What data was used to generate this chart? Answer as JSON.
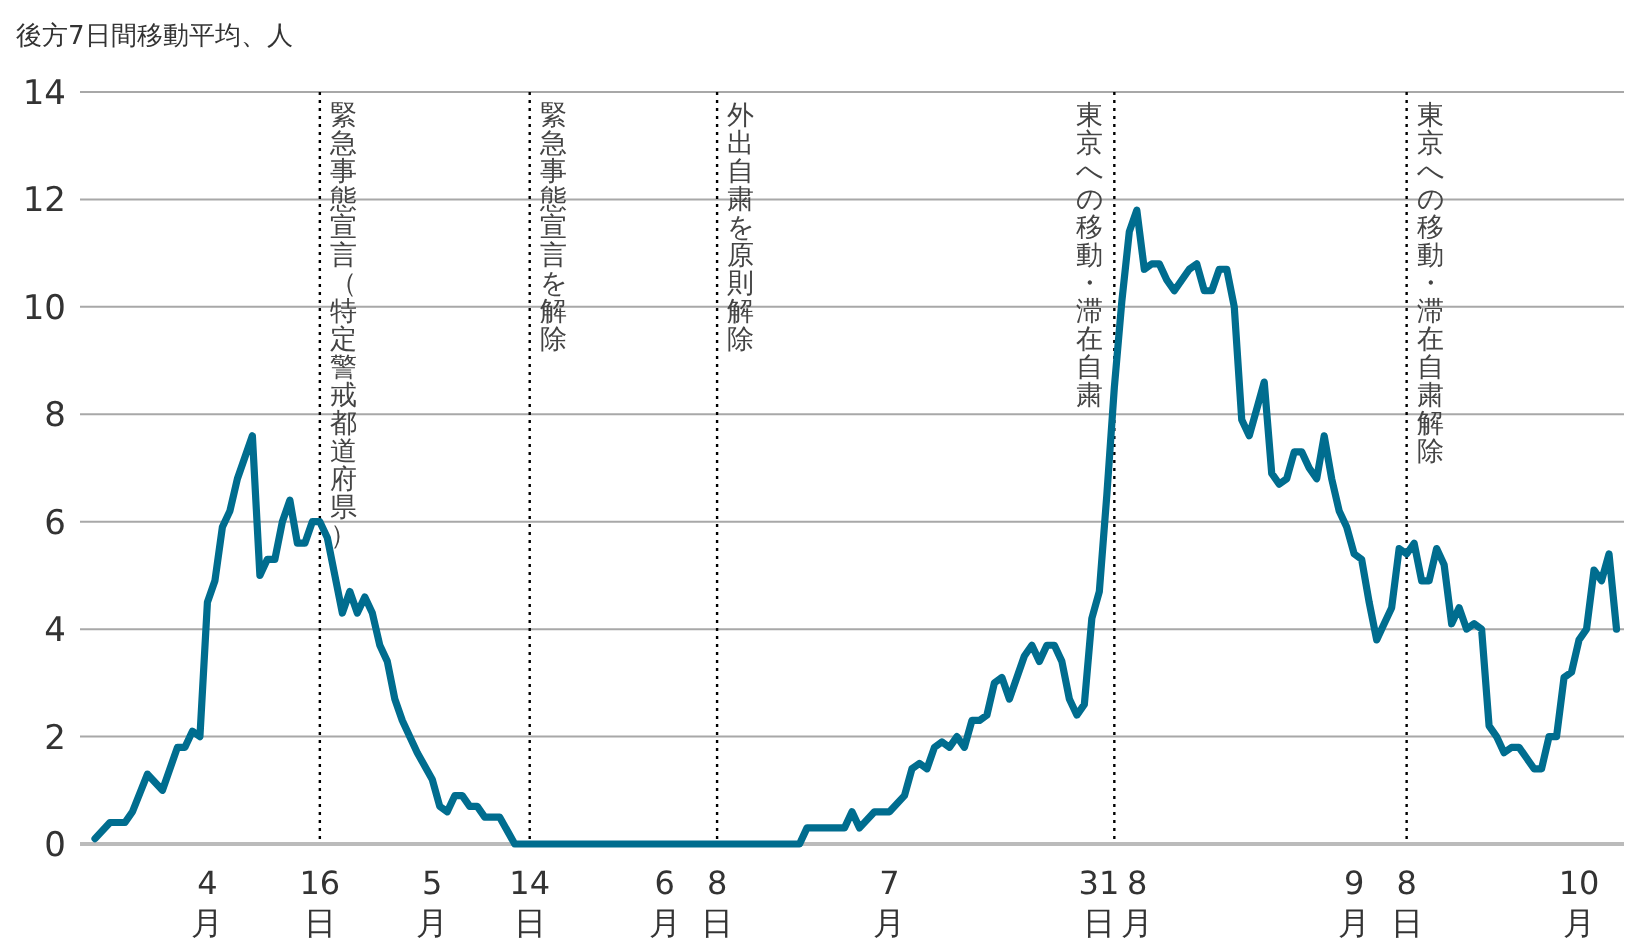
{
  "chart_data": {
    "type": "line",
    "ylabel": "後方7日間移動平均、人",
    "color": "#006d8f",
    "grid": "y",
    "line_style": "solid",
    "xlim": [
      "--03-15",
      "--10-07"
    ],
    "ylim": [
      0,
      14
    ],
    "yticks": [
      0,
      2,
      4,
      6,
      8,
      10,
      12,
      14
    ],
    "xticks": [
      {
        "value": "--04-01",
        "label": "4月"
      },
      {
        "value": "--04-16",
        "label": "16日"
      },
      {
        "value": "--05-01",
        "label": "5月"
      },
      {
        "value": "--05-14",
        "label": "14日"
      },
      {
        "value": "--06-01",
        "label": "6月"
      },
      {
        "value": "--06-08",
        "label": "8日"
      },
      {
        "value": "--07-01",
        "label": "7月"
      },
      {
        "value": "--07-31",
        "label": "31日"
      },
      {
        "value": "--08-01",
        "label": "8月"
      },
      {
        "value": "--09-01",
        "label": "9月"
      },
      {
        "value": "--09-08",
        "label": "8日"
      },
      {
        "value": "--10-01",
        "label": "10月"
      }
    ],
    "ref_lines": [
      {
        "axis": "x",
        "value": "--04-16",
        "label": "緊急事態宣言（特定警戒都道府県）",
        "color": "#000000",
        "line_style": "dotted"
      },
      {
        "axis": "x",
        "value": "--05-14",
        "label": "緊急事態宣言を解除",
        "color": "#000000",
        "line_style": "dotted"
      },
      {
        "axis": "x",
        "value": "--06-08",
        "label": "外出自粛を原則解除",
        "color": "#000000",
        "line_style": "dotted"
      },
      {
        "axis": "x",
        "value": "--07-31",
        "label": "東京への移動・滞在自粛",
        "color": "#000000",
        "line_style": "dotted"
      },
      {
        "axis": "x",
        "value": "--09-08",
        "label": "東京への移動・滞在自粛解除",
        "color": "#000000",
        "line_style": "dotted"
      }
    ],
    "x": [
      "--03-17",
      "--03-19",
      "--03-21",
      "--03-22",
      "--03-24",
      "--03-26",
      "--03-28",
      "--03-29",
      "--03-30",
      "--03-31",
      "--04-01",
      "--04-02",
      "--04-03",
      "--04-04",
      "--04-05",
      "--04-07",
      "--04-08",
      "--04-09",
      "--04-10",
      "--04-11",
      "--04-12",
      "--04-13",
      "--04-14",
      "--04-15",
      "--04-16",
      "--04-17",
      "--04-18",
      "--04-19",
      "--04-20",
      "--04-21",
      "--04-22",
      "--04-23",
      "--04-24",
      "--04-25",
      "--04-26",
      "--04-27",
      "--04-29",
      "--05-01",
      "--05-02",
      "--05-03",
      "--05-04",
      "--05-05",
      "--05-06",
      "--05-07",
      "--05-08",
      "--05-10",
      "--05-12",
      "--06-19",
      "--06-20",
      "--06-25",
      "--06-26",
      "--06-27",
      "--06-29",
      "--07-01",
      "--07-03",
      "--07-04",
      "--07-05",
      "--07-06",
      "--07-07",
      "--07-08",
      "--07-09",
      "--07-10",
      "--07-11",
      "--07-12",
      "--07-13",
      "--07-14",
      "--07-15",
      "--07-16",
      "--07-17",
      "--07-19",
      "--07-20",
      "--07-21",
      "--07-22",
      "--07-23",
      "--07-24",
      "--07-25",
      "--07-26",
      "--07-27",
      "--07-28",
      "--07-29",
      "--07-30",
      "--07-31",
      "--08-01",
      "--08-02",
      "--08-03",
      "--08-04",
      "--08-05",
      "--08-06",
      "--08-07",
      "--08-08",
      "--08-10",
      "--08-11",
      "--08-12",
      "--08-13",
      "--08-14",
      "--08-15",
      "--08-16",
      "--08-17",
      "--08-18",
      "--08-19",
      "--08-20",
      "--08-21",
      "--08-22",
      "--08-23",
      "--08-24",
      "--08-25",
      "--08-26",
      "--08-27",
      "--08-28",
      "--08-29",
      "--08-30",
      "--08-31",
      "--09-01",
      "--09-02",
      "--09-03",
      "--09-04",
      "--09-05",
      "--09-06",
      "--09-07",
      "--09-08",
      "--09-09",
      "--09-10",
      "--09-11",
      "--09-12",
      "--09-13",
      "--09-14",
      "--09-15",
      "--09-16",
      "--09-17",
      "--09-18",
      "--09-19",
      "--09-20",
      "--09-21",
      "--09-22",
      "--09-23",
      "--09-24",
      "--09-25",
      "--09-26",
      "--09-27",
      "--09-28",
      "--09-29",
      "--09-30",
      "--10-01",
      "--10-02",
      "--10-03",
      "--10-04",
      "--10-05",
      "--10-06"
    ],
    "values": [
      0.1,
      0.4,
      0.4,
      0.6,
      1.3,
      1.0,
      1.8,
      1.8,
      2.1,
      2.0,
      4.5,
      4.9,
      5.9,
      6.2,
      6.8,
      7.6,
      5.0,
      5.3,
      5.3,
      6.0,
      6.4,
      5.6,
      5.6,
      6.0,
      6.0,
      5.7,
      5.0,
      4.3,
      4.7,
      4.3,
      4.6,
      4.3,
      3.7,
      3.4,
      2.7,
      2.3,
      1.7,
      1.2,
      0.7,
      0.6,
      0.9,
      0.9,
      0.7,
      0.7,
      0.5,
      0.5,
      0,
      0,
      0.3,
      0.3,
      0.6,
      0.3,
      0.6,
      0.6,
      0.9,
      1.4,
      1.5,
      1.4,
      1.8,
      1.9,
      1.8,
      2.0,
      1.8,
      2.3,
      2.3,
      2.4,
      3.0,
      3.1,
      2.7,
      3.5,
      3.7,
      3.4,
      3.7,
      3.7,
      3.4,
      2.7,
      2.4,
      2.6,
      4.2,
      4.7,
      6.5,
      8.5,
      10.1,
      11.4,
      11.8,
      10.7,
      10.8,
      10.8,
      10.5,
      10.3,
      10.7,
      10.8,
      10.3,
      10.3,
      10.7,
      10.7,
      10.0,
      7.9,
      7.6,
      8.1,
      8.6,
      6.9,
      6.7,
      6.8,
      7.3,
      7.3,
      7.0,
      6.8,
      7.6,
      6.8,
      6.2,
      5.9,
      5.4,
      5.3,
      4.5,
      3.8,
      4.1,
      4.4,
      5.5,
      5.4,
      5.6,
      4.9,
      4.9,
      5.5,
      5.2,
      4.1,
      4.4,
      4.0,
      4.1,
      4.0,
      2.2,
      2.0,
      1.7,
      1.8,
      1.8,
      1.6,
      1.4,
      1.4,
      2.0,
      2.0,
      3.1,
      3.2,
      3.8,
      4.0,
      5.1,
      4.9,
      5.4,
      4.0
    ]
  }
}
